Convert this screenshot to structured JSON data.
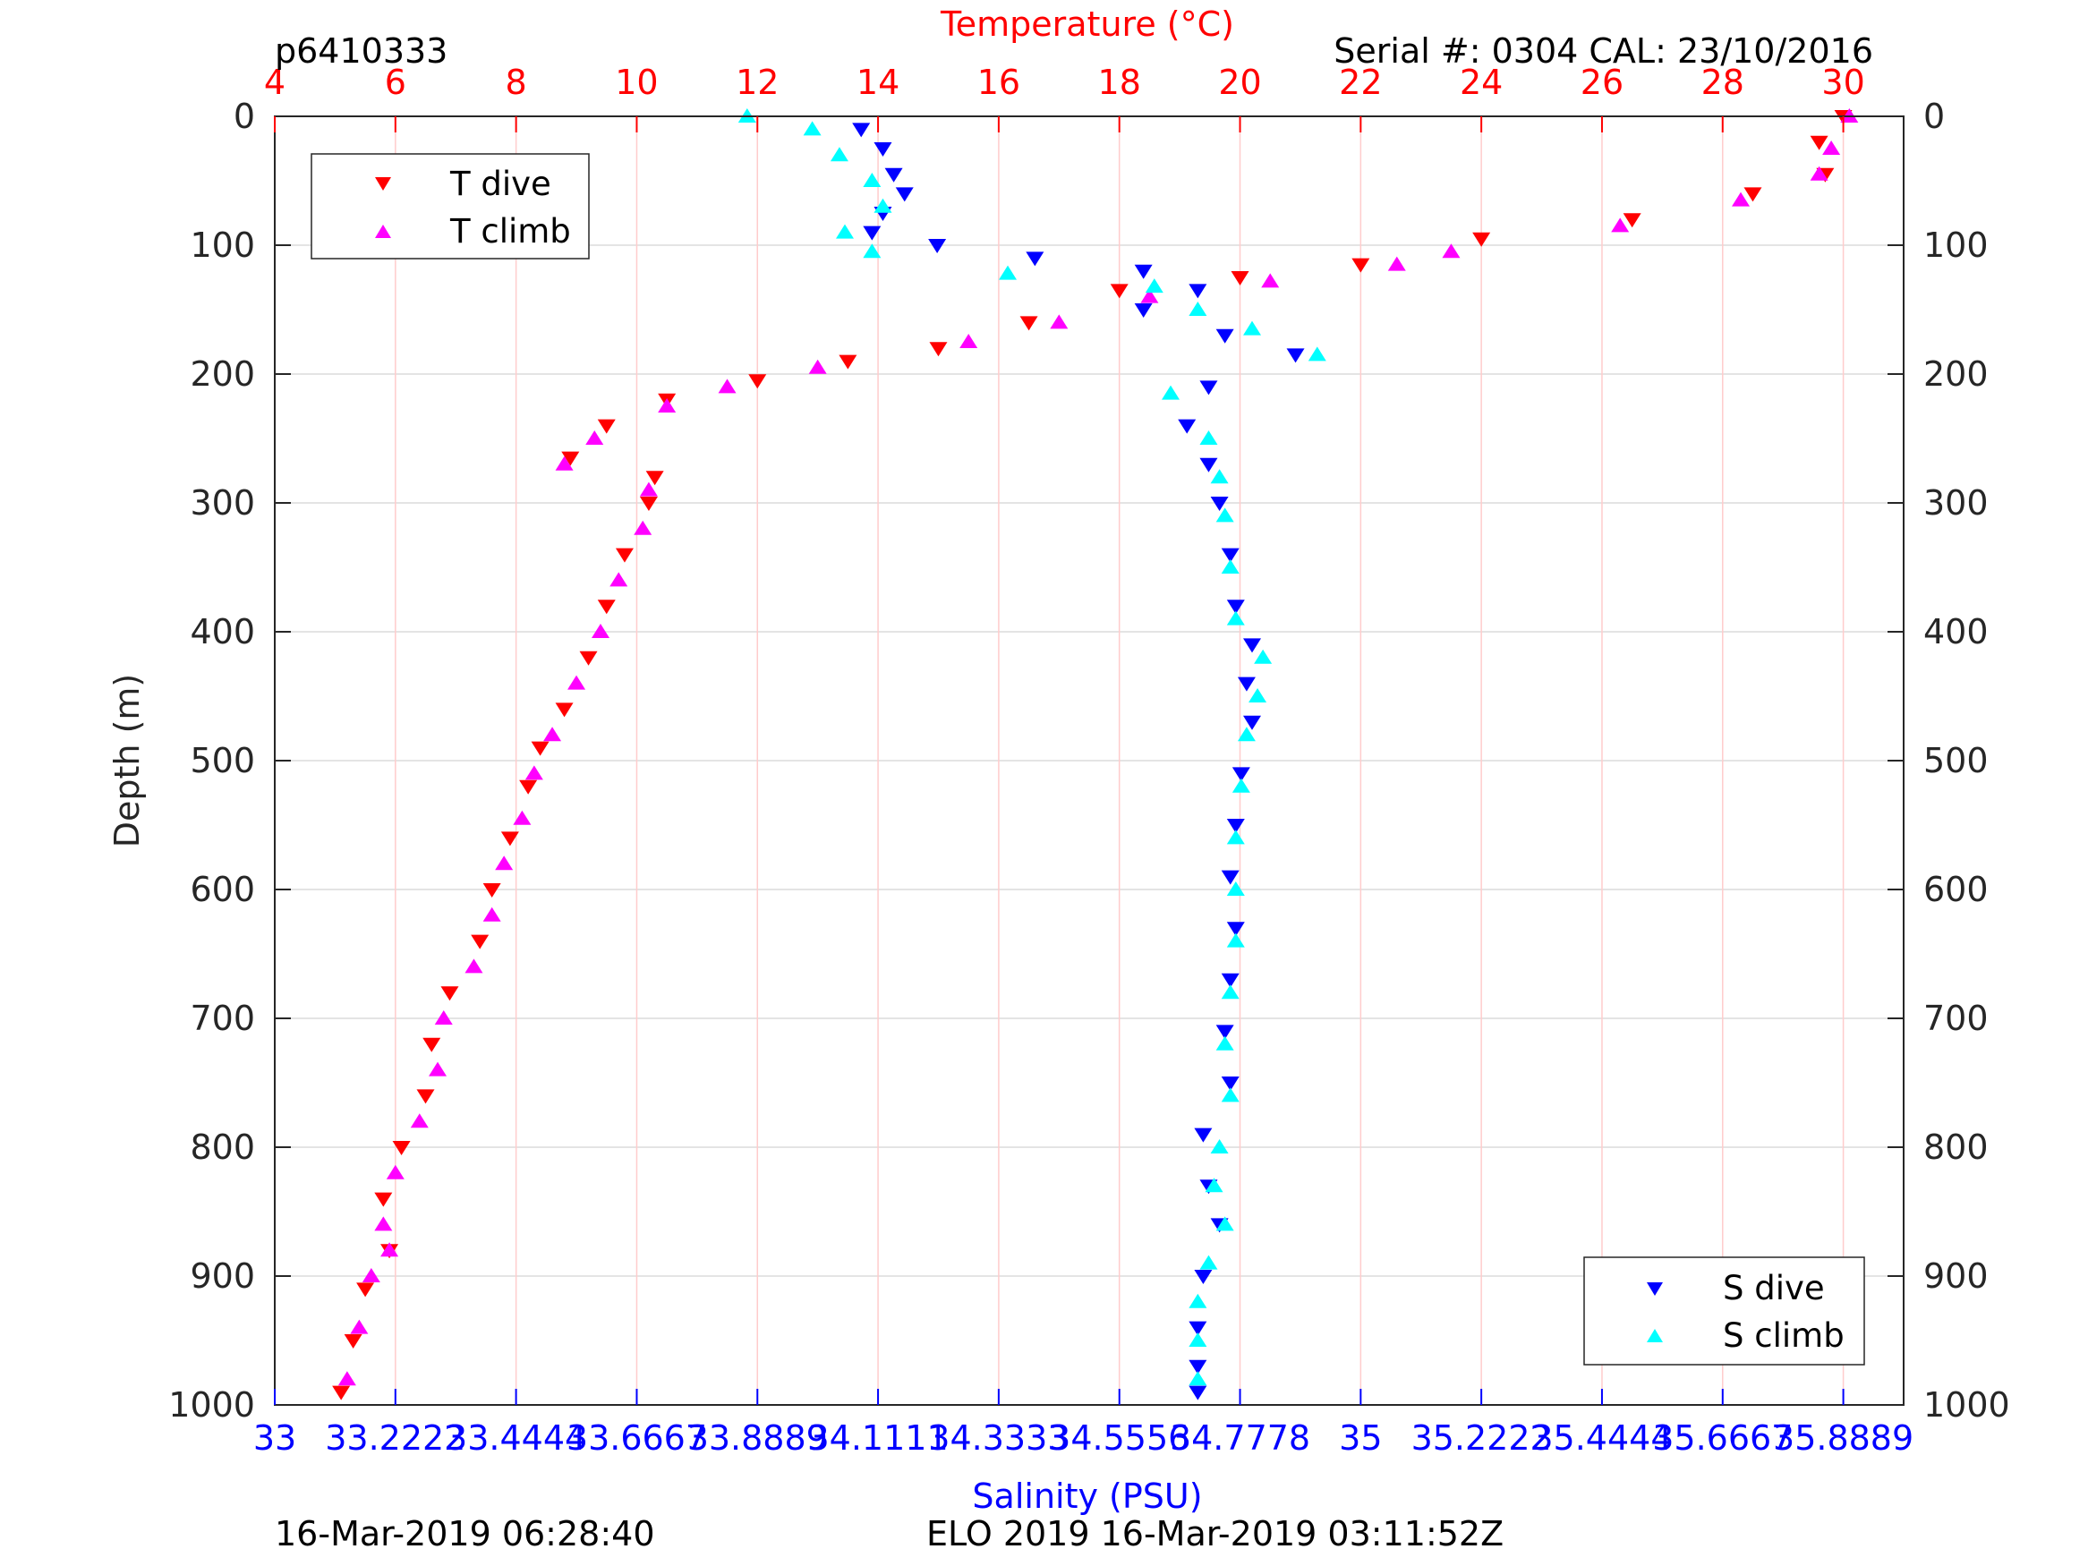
{
  "header": {
    "profile_id": "p6410333",
    "serial": "Serial #: 0304  CAL: 23/10/2016"
  },
  "footer": {
    "left": "16-Mar-2019 06:28:40",
    "center": "ELO 2019 16-Mar-2019 03:11:52Z"
  },
  "colors": {
    "t_dive": "#ff0000",
    "t_climb": "#ff00ff",
    "s_dive": "#0000ff",
    "s_climb": "#00ffff",
    "temperature_axis": "#ff0000",
    "salinity_axis": "#0000ff"
  },
  "chart_data": {
    "type": "scatter",
    "ylabel": "Depth (m)",
    "ylim": [
      0,
      1000
    ],
    "y_reversed": true,
    "yticks": [
      0,
      100,
      200,
      300,
      400,
      500,
      600,
      700,
      800,
      900,
      1000
    ],
    "ytick_labels": [
      "0",
      "100",
      "200",
      "300",
      "400",
      "500",
      "600",
      "700",
      "800",
      "900",
      "1000"
    ],
    "temperature_axis": {
      "label": "Temperature (°C)",
      "lim": [
        4,
        31
      ],
      "ticks": [
        4,
        6,
        8,
        10,
        12,
        14,
        16,
        18,
        20,
        22,
        24,
        26,
        28,
        30
      ],
      "tick_labels": [
        "4",
        "6",
        "8",
        "10",
        "12",
        "14",
        "16",
        "18",
        "20",
        "22",
        "24",
        "26",
        "28",
        "30"
      ]
    },
    "salinity_axis": {
      "label": "Salinity (PSU)",
      "lim": [
        33,
        36
      ],
      "ticks": [
        33,
        33.2222,
        33.4444,
        33.6667,
        33.8889,
        34.1111,
        34.3333,
        34.5556,
        34.7778,
        35,
        35.2222,
        35.4444,
        35.6667,
        35.8889
      ],
      "tick_labels": [
        "33",
        "33.2222",
        "33.4444",
        "33.6667",
        "33.8889",
        "34.1111",
        "34.3333",
        "34.5556",
        "34.7778",
        "35",
        "35.2222",
        "35.4444",
        "35.6667",
        "35.8889"
      ]
    },
    "grid": true,
    "legend_top_left": [
      "T dive",
      "T climb"
    ],
    "legend_bottom_right": [
      "S dive",
      "S climb"
    ],
    "series": [
      {
        "name": "T dive",
        "axis": "temperature",
        "marker": "triangle-down",
        "points": [
          [
            30.0,
            0
          ],
          [
            29.6,
            20
          ],
          [
            29.7,
            45
          ],
          [
            28.5,
            60
          ],
          [
            26.5,
            80
          ],
          [
            24.0,
            95
          ],
          [
            22.0,
            115
          ],
          [
            20.0,
            125
          ],
          [
            18.0,
            135
          ],
          [
            16.5,
            160
          ],
          [
            15.0,
            180
          ],
          [
            13.5,
            190
          ],
          [
            12.0,
            205
          ],
          [
            10.5,
            220
          ],
          [
            9.5,
            240
          ],
          [
            8.9,
            265
          ],
          [
            10.3,
            280
          ],
          [
            10.2,
            300
          ],
          [
            9.8,
            340
          ],
          [
            9.5,
            380
          ],
          [
            9.2,
            420
          ],
          [
            8.8,
            460
          ],
          [
            8.4,
            490
          ],
          [
            8.2,
            520
          ],
          [
            7.9,
            560
          ],
          [
            7.6,
            600
          ],
          [
            7.4,
            640
          ],
          [
            6.9,
            680
          ],
          [
            6.6,
            720
          ],
          [
            6.5,
            760
          ],
          [
            6.1,
            800
          ],
          [
            5.8,
            840
          ],
          [
            5.9,
            880
          ],
          [
            5.5,
            910
          ],
          [
            5.3,
            950
          ],
          [
            5.1,
            990
          ]
        ]
      },
      {
        "name": "T climb",
        "axis": "temperature",
        "marker": "triangle-up",
        "points": [
          [
            30.1,
            0
          ],
          [
            29.8,
            25
          ],
          [
            29.6,
            45
          ],
          [
            28.3,
            65
          ],
          [
            26.3,
            85
          ],
          [
            23.5,
            105
          ],
          [
            22.6,
            115
          ],
          [
            20.5,
            128
          ],
          [
            18.5,
            140
          ],
          [
            17.0,
            160
          ],
          [
            15.5,
            175
          ],
          [
            13.0,
            195
          ],
          [
            11.5,
            210
          ],
          [
            10.5,
            225
          ],
          [
            9.3,
            250
          ],
          [
            8.8,
            270
          ],
          [
            10.2,
            290
          ],
          [
            10.1,
            320
          ],
          [
            9.7,
            360
          ],
          [
            9.4,
            400
          ],
          [
            9.0,
            440
          ],
          [
            8.6,
            480
          ],
          [
            8.3,
            510
          ],
          [
            8.1,
            545
          ],
          [
            7.8,
            580
          ],
          [
            7.6,
            620
          ],
          [
            7.3,
            660
          ],
          [
            6.8,
            700
          ],
          [
            6.7,
            740
          ],
          [
            6.4,
            780
          ],
          [
            6.0,
            820
          ],
          [
            5.8,
            860
          ],
          [
            5.9,
            880
          ],
          [
            5.6,
            900
          ],
          [
            5.4,
            940
          ],
          [
            5.2,
            980
          ]
        ]
      },
      {
        "name": "S dive",
        "axis": "salinity",
        "marker": "triangle-down",
        "points": [
          [
            34.08,
            10
          ],
          [
            34.12,
            25
          ],
          [
            34.14,
            45
          ],
          [
            34.16,
            60
          ],
          [
            34.12,
            75
          ],
          [
            34.1,
            90
          ],
          [
            34.22,
            100
          ],
          [
            34.4,
            110
          ],
          [
            34.6,
            120
          ],
          [
            34.7,
            135
          ],
          [
            34.6,
            150
          ],
          [
            34.75,
            170
          ],
          [
            34.88,
            185
          ],
          [
            34.72,
            210
          ],
          [
            34.68,
            240
          ],
          [
            34.72,
            270
          ],
          [
            34.74,
            300
          ],
          [
            34.76,
            340
          ],
          [
            34.77,
            380
          ],
          [
            34.8,
            410
          ],
          [
            34.79,
            440
          ],
          [
            34.8,
            470
          ],
          [
            34.78,
            510
          ],
          [
            34.77,
            550
          ],
          [
            34.76,
            590
          ],
          [
            34.77,
            630
          ],
          [
            34.76,
            670
          ],
          [
            34.75,
            710
          ],
          [
            34.76,
            750
          ],
          [
            34.71,
            790
          ],
          [
            34.72,
            830
          ],
          [
            34.74,
            860
          ],
          [
            34.71,
            900
          ],
          [
            34.7,
            940
          ],
          [
            34.7,
            970
          ],
          [
            34.7,
            990
          ]
        ]
      },
      {
        "name": "S climb",
        "axis": "salinity",
        "marker": "triangle-up",
        "points": [
          [
            33.87,
            0
          ],
          [
            33.99,
            10
          ],
          [
            34.04,
            30
          ],
          [
            34.1,
            50
          ],
          [
            34.12,
            70
          ],
          [
            34.05,
            90
          ],
          [
            34.1,
            105
          ],
          [
            34.35,
            122
          ],
          [
            34.62,
            132
          ],
          [
            34.7,
            150
          ],
          [
            34.8,
            165
          ],
          [
            34.92,
            185
          ],
          [
            34.65,
            215
          ],
          [
            34.72,
            250
          ],
          [
            34.74,
            280
          ],
          [
            34.75,
            310
          ],
          [
            34.76,
            350
          ],
          [
            34.77,
            390
          ],
          [
            34.82,
            420
          ],
          [
            34.81,
            450
          ],
          [
            34.79,
            480
          ],
          [
            34.78,
            520
          ],
          [
            34.77,
            560
          ],
          [
            34.77,
            600
          ],
          [
            34.77,
            640
          ],
          [
            34.76,
            680
          ],
          [
            34.75,
            720
          ],
          [
            34.76,
            760
          ],
          [
            34.74,
            800
          ],
          [
            34.73,
            830
          ],
          [
            34.75,
            860
          ],
          [
            34.72,
            890
          ],
          [
            34.7,
            920
          ],
          [
            34.7,
            950
          ],
          [
            34.7,
            980
          ]
        ]
      }
    ]
  }
}
